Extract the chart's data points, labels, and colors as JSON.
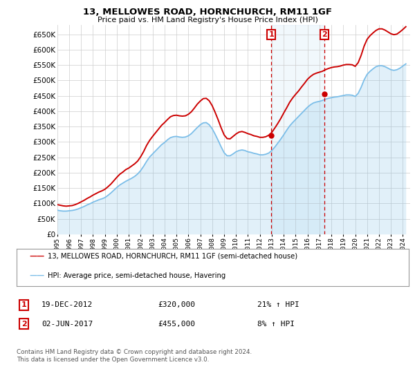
{
  "title": "13, MELLOWES ROAD, HORNCHURCH, RM11 1GF",
  "subtitle": "Price paid vs. HM Land Registry's House Price Index (HPI)",
  "ylim": [
    0,
    680000
  ],
  "yticks": [
    0,
    50000,
    100000,
    150000,
    200000,
    250000,
    300000,
    350000,
    400000,
    450000,
    500000,
    550000,
    600000,
    650000
  ],
  "xlim_start": 1995.0,
  "xlim_end": 2024.6,
  "xtick_years": [
    1995,
    1996,
    1997,
    1998,
    1999,
    2000,
    2001,
    2002,
    2003,
    2004,
    2005,
    2006,
    2007,
    2008,
    2009,
    2010,
    2011,
    2012,
    2013,
    2014,
    2015,
    2016,
    2017,
    2018,
    2019,
    2020,
    2021,
    2022,
    2023,
    2024
  ],
  "hpi_color": "#7abde8",
  "price_color": "#cc0000",
  "background_color": "#ffffff",
  "grid_color": "#cccccc",
  "sale1_x": 2012.96,
  "sale1_y": 320000,
  "sale1_label": "1",
  "sale1_date": "19-DEC-2012",
  "sale1_price": "£320,000",
  "sale1_hpi": "21% ↑ HPI",
  "sale2_x": 2017.42,
  "sale2_y": 455000,
  "sale2_label": "2",
  "sale2_date": "02-JUN-2017",
  "sale2_price": "£455,000",
  "sale2_hpi": "8% ↑ HPI",
  "legend_line1": "13, MELLOWES ROAD, HORNCHURCH, RM11 1GF (semi-detached house)",
  "legend_line2": "HPI: Average price, semi-detached house, Havering",
  "footer": "Contains HM Land Registry data © Crown copyright and database right 2024.\nThis data is licensed under the Open Government Licence v3.0.",
  "hpi_data_x": [
    1995.0,
    1995.25,
    1995.5,
    1995.75,
    1996.0,
    1996.25,
    1996.5,
    1996.75,
    1997.0,
    1997.25,
    1997.5,
    1997.75,
    1998.0,
    1998.25,
    1998.5,
    1998.75,
    1999.0,
    1999.25,
    1999.5,
    1999.75,
    2000.0,
    2000.25,
    2000.5,
    2000.75,
    2001.0,
    2001.25,
    2001.5,
    2001.75,
    2002.0,
    2002.25,
    2002.5,
    2002.75,
    2003.0,
    2003.25,
    2003.5,
    2003.75,
    2004.0,
    2004.25,
    2004.5,
    2004.75,
    2005.0,
    2005.25,
    2005.5,
    2005.75,
    2006.0,
    2006.25,
    2006.5,
    2006.75,
    2007.0,
    2007.25,
    2007.5,
    2007.75,
    2008.0,
    2008.25,
    2008.5,
    2008.75,
    2009.0,
    2009.25,
    2009.5,
    2009.75,
    2010.0,
    2010.25,
    2010.5,
    2010.75,
    2011.0,
    2011.25,
    2011.5,
    2011.75,
    2012.0,
    2012.25,
    2012.5,
    2012.75,
    2013.0,
    2013.25,
    2013.5,
    2013.75,
    2014.0,
    2014.25,
    2014.5,
    2014.75,
    2015.0,
    2015.25,
    2015.5,
    2015.75,
    2016.0,
    2016.25,
    2016.5,
    2016.75,
    2017.0,
    2017.25,
    2017.5,
    2017.75,
    2018.0,
    2018.25,
    2018.5,
    2018.75,
    2019.0,
    2019.25,
    2019.5,
    2019.75,
    2020.0,
    2020.25,
    2020.5,
    2020.75,
    2021.0,
    2021.25,
    2021.5,
    2021.75,
    2022.0,
    2022.25,
    2022.5,
    2022.75,
    2023.0,
    2023.25,
    2023.5,
    2023.75,
    2024.0,
    2024.25
  ],
  "hpi_data_y": [
    78000,
    76000,
    75000,
    75000,
    76000,
    77000,
    79000,
    82000,
    86000,
    90000,
    95000,
    99000,
    104000,
    108000,
    112000,
    115000,
    119000,
    126000,
    134000,
    143000,
    152000,
    160000,
    166000,
    172000,
    177000,
    182000,
    188000,
    196000,
    207000,
    221000,
    237000,
    251000,
    261000,
    271000,
    281000,
    291000,
    298000,
    307000,
    314000,
    317000,
    318000,
    316000,
    315000,
    316000,
    320000,
    327000,
    337000,
    347000,
    356000,
    362000,
    363000,
    356000,
    343000,
    325000,
    305000,
    284000,
    265000,
    255000,
    255000,
    261000,
    268000,
    272000,
    274000,
    272000,
    268000,
    266000,
    263000,
    261000,
    258000,
    258000,
    260000,
    264000,
    272000,
    283000,
    296000,
    309000,
    323000,
    338000,
    352000,
    363000,
    373000,
    383000,
    393000,
    403000,
    413000,
    421000,
    427000,
    430000,
    432000,
    435000,
    439000,
    442000,
    444000,
    446000,
    447000,
    449000,
    451000,
    453000,
    453000,
    452000,
    448000,
    458000,
    478000,
    502000,
    520000,
    530000,
    538000,
    545000,
    548000,
    548000,
    545000,
    540000,
    535000,
    533000,
    535000,
    540000,
    547000,
    554000
  ],
  "price_data_x": [
    1995.0,
    1995.25,
    1995.5,
    1995.75,
    1996.0,
    1996.25,
    1996.5,
    1996.75,
    1997.0,
    1997.25,
    1997.5,
    1997.75,
    1998.0,
    1998.25,
    1998.5,
    1998.75,
    1999.0,
    1999.25,
    1999.5,
    1999.75,
    2000.0,
    2000.25,
    2000.5,
    2000.75,
    2001.0,
    2001.25,
    2001.5,
    2001.75,
    2002.0,
    2002.25,
    2002.5,
    2002.75,
    2003.0,
    2003.25,
    2003.5,
    2003.75,
    2004.0,
    2004.25,
    2004.5,
    2004.75,
    2005.0,
    2005.25,
    2005.5,
    2005.75,
    2006.0,
    2006.25,
    2006.5,
    2006.75,
    2007.0,
    2007.25,
    2007.5,
    2007.75,
    2008.0,
    2008.25,
    2008.5,
    2008.75,
    2009.0,
    2009.25,
    2009.5,
    2009.75,
    2010.0,
    2010.25,
    2010.5,
    2010.75,
    2011.0,
    2011.25,
    2011.5,
    2011.75,
    2012.0,
    2012.25,
    2012.5,
    2012.75,
    2013.0,
    2013.25,
    2013.5,
    2013.75,
    2014.0,
    2014.25,
    2014.5,
    2014.75,
    2015.0,
    2015.25,
    2015.5,
    2015.75,
    2016.0,
    2016.25,
    2016.5,
    2016.75,
    2017.0,
    2017.25,
    2017.5,
    2017.75,
    2018.0,
    2018.25,
    2018.5,
    2018.75,
    2019.0,
    2019.25,
    2019.5,
    2019.75,
    2020.0,
    2020.25,
    2020.5,
    2020.75,
    2021.0,
    2021.25,
    2021.5,
    2021.75,
    2022.0,
    2022.25,
    2022.5,
    2022.75,
    2023.0,
    2023.25,
    2023.5,
    2023.75,
    2024.0,
    2024.25
  ],
  "price_data_y": [
    96000,
    94000,
    92000,
    91000,
    92000,
    93000,
    96000,
    100000,
    105000,
    110000,
    116000,
    121000,
    127000,
    132000,
    137000,
    141000,
    146000,
    154000,
    163000,
    174000,
    185000,
    195000,
    202000,
    210000,
    215000,
    222000,
    229000,
    238000,
    252000,
    269000,
    289000,
    305000,
    318000,
    330000,
    342000,
    354000,
    363000,
    373000,
    382000,
    386000,
    387000,
    385000,
    384000,
    385000,
    390000,
    398000,
    410000,
    423000,
    433000,
    441000,
    442000,
    434000,
    418000,
    396000,
    372000,
    346000,
    323000,
    311000,
    310000,
    318000,
    326000,
    332000,
    334000,
    331000,
    327000,
    324000,
    320000,
    318000,
    315000,
    315000,
    317000,
    322000,
    331000,
    345000,
    360000,
    376000,
    394000,
    411000,
    429000,
    443000,
    455000,
    466000,
    479000,
    491000,
    504000,
    513000,
    520000,
    524000,
    527000,
    530000,
    535000,
    539000,
    542000,
    544000,
    545000,
    547000,
    550000,
    552000,
    552000,
    551000,
    546000,
    558000,
    582000,
    612000,
    634000,
    646000,
    655000,
    663000,
    668000,
    668000,
    664000,
    658000,
    652000,
    649000,
    651000,
    658000,
    666000,
    675000
  ]
}
